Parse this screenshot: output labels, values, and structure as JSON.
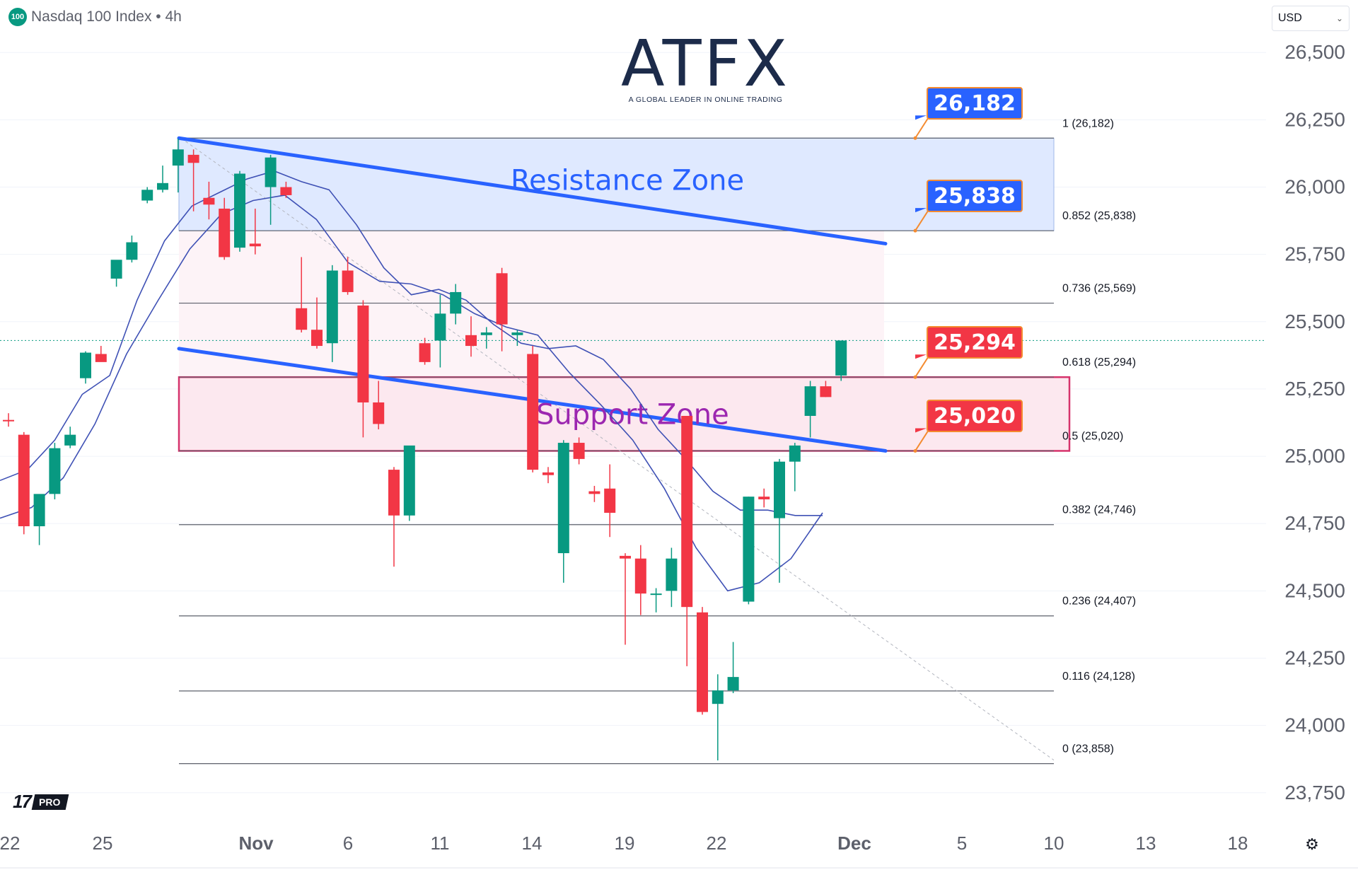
{
  "header": {
    "symbol_badge": "100",
    "title": "Nasdaq 100 Index • 4h"
  },
  "currency": {
    "label": "USD"
  },
  "logo": {
    "wordmark": "ATFX",
    "tagline": "A GLOBAL LEADER IN ONLINE TRADING"
  },
  "watermark": {
    "mark": "17",
    "badge": "PRO"
  },
  "colors": {
    "up": "#089981",
    "down": "#f23645",
    "trendline": "#2962ff",
    "resistance_fill": "#dfe9ff",
    "support_border": "#d6336c",
    "support_text": "#9c27b0",
    "resistance_text": "#2962ff",
    "fib_line": "#5d606b",
    "ma": "#3f51b5"
  },
  "chart_data": {
    "type": "candlestick",
    "title": "Nasdaq 100 Index • 4h",
    "y_axis": {
      "ticks": [
        23750,
        24000,
        24250,
        24500,
        24750,
        25000,
        25250,
        25500,
        25750,
        26000,
        26250,
        26500
      ],
      "tick_labels": [
        "23,750",
        "24,000",
        "24,250",
        "24,500",
        "24,750",
        "25,000",
        "25,250",
        "25,500",
        "25,750",
        "26,000",
        "26,250",
        "26,500"
      ],
      "range": [
        23660,
        26590
      ],
      "side": "right"
    },
    "x_axis": {
      "tick_labels": [
        "22",
        "25",
        "Nov",
        "6",
        "11",
        "14",
        "19",
        "22",
        "Dec",
        "5",
        "10",
        "13",
        "18"
      ]
    },
    "candles": [
      {
        "o": 25135,
        "h": 25160,
        "l": 25110,
        "c": 25130
      },
      {
        "o": 25080,
        "h": 25090,
        "l": 24710,
        "c": 24740
      },
      {
        "o": 24740,
        "h": 24850,
        "l": 24670,
        "c": 24860
      },
      {
        "o": 24860,
        "h": 25050,
        "l": 24840,
        "c": 25030
      },
      {
        "o": 25040,
        "h": 25110,
        "l": 25030,
        "c": 25080
      },
      {
        "o": 25290,
        "h": 25390,
        "l": 25270,
        "c": 25385
      },
      {
        "o": 25380,
        "h": 25410,
        "l": 25365,
        "c": 25350
      },
      {
        "o": 25660,
        "h": 25710,
        "l": 25630,
        "c": 25730
      },
      {
        "o": 25730,
        "h": 25820,
        "l": 25720,
        "c": 25795
      },
      {
        "o": 25950,
        "h": 26000,
        "l": 25940,
        "c": 25990
      },
      {
        "o": 25990,
        "h": 26080,
        "l": 25980,
        "c": 26015
      },
      {
        "o": 26080,
        "h": 26180,
        "l": 25980,
        "c": 26140
      },
      {
        "o": 26120,
        "h": 26140,
        "l": 25910,
        "c": 26090
      },
      {
        "o": 25960,
        "h": 26020,
        "l": 25880,
        "c": 25935
      },
      {
        "o": 25920,
        "h": 25960,
        "l": 25730,
        "c": 25740
      },
      {
        "o": 25775,
        "h": 26060,
        "l": 25760,
        "c": 26050
      },
      {
        "o": 25790,
        "h": 25920,
        "l": 25750,
        "c": 25780
      },
      {
        "o": 26000,
        "h": 26120,
        "l": 25860,
        "c": 26110
      },
      {
        "o": 26000,
        "h": 26020,
        "l": 25960,
        "c": 25970
      },
      {
        "o": 25550,
        "h": 25740,
        "l": 25460,
        "c": 25470
      },
      {
        "o": 25470,
        "h": 25590,
        "l": 25400,
        "c": 25410
      },
      {
        "o": 25420,
        "h": 25710,
        "l": 25350,
        "c": 25690
      },
      {
        "o": 25690,
        "h": 25740,
        "l": 25600,
        "c": 25610
      },
      {
        "o": 25560,
        "h": 25580,
        "l": 25070,
        "c": 25200
      },
      {
        "o": 25200,
        "h": 25280,
        "l": 25100,
        "c": 25120
      },
      {
        "o": 24950,
        "h": 24960,
        "l": 24590,
        "c": 24780
      },
      {
        "o": 24780,
        "h": 25030,
        "l": 24760,
        "c": 25040
      },
      {
        "o": 25420,
        "h": 25440,
        "l": 25340,
        "c": 25350
      },
      {
        "o": 25430,
        "h": 25600,
        "l": 25330,
        "c": 25530
      },
      {
        "o": 25530,
        "h": 25640,
        "l": 25490,
        "c": 25610
      },
      {
        "o": 25450,
        "h": 25520,
        "l": 25370,
        "c": 25410
      },
      {
        "o": 25450,
        "h": 25480,
        "l": 25400,
        "c": 25460
      },
      {
        "o": 25680,
        "h": 25700,
        "l": 25390,
        "c": 25490
      },
      {
        "o": 25450,
        "h": 25470,
        "l": 25410,
        "c": 25460
      },
      {
        "o": 25380,
        "h": 25410,
        "l": 24940,
        "c": 24950
      },
      {
        "o": 24940,
        "h": 24960,
        "l": 24900,
        "c": 24930
      },
      {
        "o": 24640,
        "h": 25060,
        "l": 24530,
        "c": 25050
      },
      {
        "o": 25050,
        "h": 25070,
        "l": 24970,
        "c": 24990
      },
      {
        "o": 24870,
        "h": 24890,
        "l": 24830,
        "c": 24860
      },
      {
        "o": 24880,
        "h": 24970,
        "l": 24700,
        "c": 24790
      },
      {
        "o": 24630,
        "h": 24640,
        "l": 24300,
        "c": 24620
      },
      {
        "o": 24620,
        "h": 24670,
        "l": 24410,
        "c": 24490
      },
      {
        "o": 24490,
        "h": 24510,
        "l": 24420,
        "c": 24490
      },
      {
        "o": 24500,
        "h": 24660,
        "l": 24440,
        "c": 24620
      },
      {
        "o": 25150,
        "h": 25150,
        "l": 24220,
        "c": 24440
      },
      {
        "o": 24420,
        "h": 24440,
        "l": 24040,
        "c": 24050
      },
      {
        "o": 24080,
        "h": 24190,
        "l": 23870,
        "c": 24130
      },
      {
        "o": 24130,
        "h": 24310,
        "l": 24120,
        "c": 24180
      },
      {
        "o": 24460,
        "h": 24850,
        "l": 24450,
        "c": 24850
      },
      {
        "o": 24850,
        "h": 24880,
        "l": 24810,
        "c": 24840
      },
      {
        "o": 24770,
        "h": 24990,
        "l": 24530,
        "c": 24980
      },
      {
        "o": 24980,
        "h": 25050,
        "l": 24870,
        "c": 25040
      },
      {
        "o": 25150,
        "h": 25280,
        "l": 25070,
        "c": 25260
      },
      {
        "o": 25260,
        "h": 25280,
        "l": 25220,
        "c": 25220
      },
      {
        "o": 25300,
        "h": 25430,
        "l": 25280,
        "c": 25430
      }
    ],
    "fibonacci": [
      {
        "ratio": "1",
        "price": 26182,
        "label": "1 (26,182)"
      },
      {
        "ratio": "0.852",
        "price": 25838,
        "label": "0.852 (25,838)"
      },
      {
        "ratio": "0.736",
        "price": 25569,
        "label": "0.736 (25,569)"
      },
      {
        "ratio": "0.618",
        "price": 25294,
        "label": "0.618 (25,294)"
      },
      {
        "ratio": "0.5",
        "price": 25020,
        "label": "0.5 (25,020)"
      },
      {
        "ratio": "0.382",
        "price": 24746,
        "label": "0.382 (24,746)"
      },
      {
        "ratio": "0.236",
        "price": 24407,
        "label": "0.236 (24,407)"
      },
      {
        "ratio": "0.116",
        "price": 24128,
        "label": "0.116 (24,128)"
      },
      {
        "ratio": "0",
        "price": 23858,
        "label": "0 (23,858)"
      }
    ],
    "zones": [
      {
        "name": "Resistance Zone",
        "from": 25838,
        "to": 26182
      },
      {
        "name": "Support Zone",
        "from": 25020,
        "to": 25294
      }
    ],
    "callouts": [
      {
        "label": "26,182",
        "price": 26182,
        "style": "blue"
      },
      {
        "label": "25,838",
        "price": 25838,
        "style": "blue"
      },
      {
        "label": "25,294",
        "price": 25294,
        "style": "red"
      },
      {
        "label": "25,020",
        "price": 25020,
        "style": "red"
      }
    ],
    "trendlines": [
      {
        "from_price": 26182,
        "to_price": 25790
      },
      {
        "from_price": 25400,
        "to_price": 25020
      }
    ],
    "moving_averages": {
      "fast": [
        24910,
        24950,
        25060,
        25230,
        25300,
        25580,
        25800,
        25930,
        25980,
        26030,
        26060,
        26020,
        25990,
        25860,
        25700,
        25600,
        25620,
        25580,
        25490,
        25420,
        25400,
        25410,
        25360,
        25250,
        25100,
        24990,
        24870,
        24800,
        24800,
        24780,
        24780
      ],
      "slow": [
        24770,
        24810,
        24920,
        25120,
        25380,
        25580,
        25770,
        25900,
        25950,
        25970,
        25880,
        25720,
        25650,
        25640,
        25600,
        25530,
        25480,
        25450,
        25310,
        25190,
        25060,
        24880,
        24660,
        24500,
        24530,
        24620,
        24790
      ]
    }
  }
}
